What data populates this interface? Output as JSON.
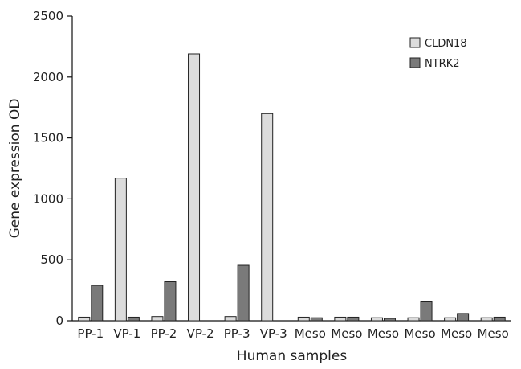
{
  "chart_data": {
    "type": "bar",
    "title": "",
    "xlabel": "Human samples",
    "ylabel": "Gene expression OD",
    "ylim": [
      0,
      2500
    ],
    "yticks": [
      0,
      500,
      1000,
      1500,
      2000,
      2500
    ],
    "categories": [
      "PP-1",
      "VP-1",
      "PP-2",
      "VP-2",
      "PP-3",
      "VP-3",
      "Meso",
      "Meso",
      "Meso",
      "Meso",
      "Meso",
      "Meso"
    ],
    "series": [
      {
        "name": "CLDN18",
        "color": "#dcdcdc",
        "values": [
          30,
          1170,
          35,
          2190,
          35,
          1700,
          30,
          30,
          25,
          25,
          25,
          25
        ]
      },
      {
        "name": "NTRK2",
        "color": "#7a7a7a",
        "values": [
          290,
          30,
          320,
          0,
          455,
          0,
          25,
          30,
          20,
          155,
          60,
          30
        ]
      }
    ],
    "grid": false,
    "legend_position": "top-right"
  }
}
